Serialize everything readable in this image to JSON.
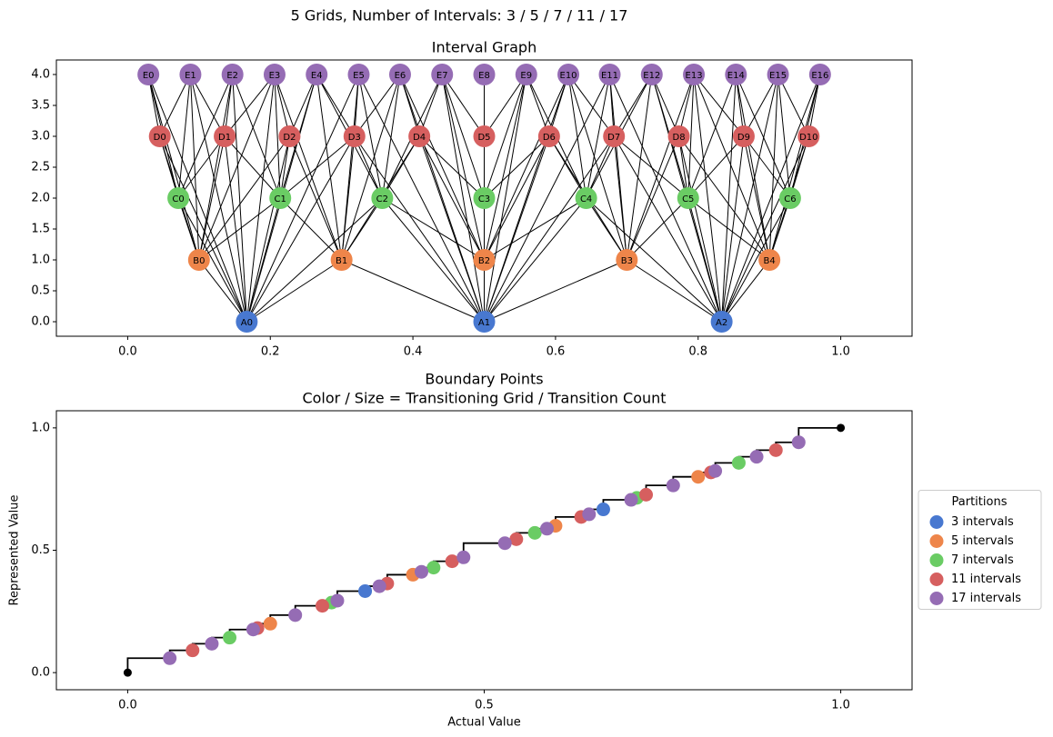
{
  "title": "5 Grids, Number of Intervals: 3 / 5 / 7 / 11 / 17",
  "chart_data": [
    {
      "type": "graph",
      "title": "Interval Graph",
      "xlim": [
        -0.1,
        1.1
      ],
      "ylim": [
        -0.235,
        4.235
      ],
      "xticks": [
        {
          "value": 0,
          "label": "0.0"
        },
        0.2,
        0.4,
        0.6,
        0.8,
        {
          "value": 1,
          "label": "1.0"
        }
      ],
      "yticks": [
        {
          "value": 0,
          "label": "0.0"
        },
        0.5,
        {
          "value": 1,
          "label": "1.0"
        },
        1.5,
        {
          "value": 2,
          "label": "2.0"
        },
        2.5,
        {
          "value": 3,
          "label": "3.0"
        },
        3.5,
        {
          "value": 4,
          "label": "4.0"
        }
      ],
      "series": [
        {
          "color": "#4878d0",
          "labels": [
            "A0",
            "A1",
            "A2"
          ],
          "x": [
            0.167,
            0.5,
            0.833
          ],
          "values": [
            0,
            0,
            0
          ]
        },
        {
          "color": "#ee854a",
          "labels": [
            "B0",
            "B1",
            "B2",
            "B3",
            "B4"
          ],
          "x": [
            0.1,
            0.3,
            0.5,
            0.7,
            0.9
          ],
          "values": [
            1,
            1,
            1,
            1,
            1
          ]
        },
        {
          "color": "#6acc64",
          "labels": [
            "C0",
            "C1",
            "C2",
            "C3",
            "C4",
            "C5",
            "C6"
          ],
          "x": [
            0.071,
            0.214,
            0.357,
            0.5,
            0.643,
            0.786,
            0.929
          ],
          "values": [
            2,
            2,
            2,
            2,
            2,
            2,
            2
          ]
        },
        {
          "color": "#d65f5f",
          "labels": [
            "D0",
            "D1",
            "D2",
            "D3",
            "D4",
            "D5",
            "D6",
            "D7",
            "D8",
            "D9",
            "D10"
          ],
          "x": [
            0.045,
            0.136,
            0.227,
            0.318,
            0.409,
            0.5,
            0.591,
            0.682,
            0.773,
            0.864,
            0.955
          ],
          "values": [
            3,
            3,
            3,
            3,
            3,
            3,
            3,
            3,
            3,
            3,
            3
          ]
        },
        {
          "color": "#956cb4",
          "labels": [
            "E0",
            "E1",
            "E2",
            "E3",
            "E4",
            "E5",
            "E6",
            "E7",
            "E8",
            "E9",
            "E10",
            "E11",
            "E12",
            "E13",
            "E14",
            "E15",
            "E16"
          ],
          "x": [
            0.029,
            0.088,
            0.147,
            0.206,
            0.265,
            0.324,
            0.382,
            0.441,
            0.5,
            0.559,
            0.618,
            0.676,
            0.735,
            0.794,
            0.853,
            0.912,
            0.971
          ],
          "values": [
            4,
            4,
            4,
            4,
            4,
            4,
            4,
            4,
            4,
            4,
            4,
            4,
            4,
            4,
            4,
            4,
            4
          ]
        }
      ]
    },
    {
      "type": "scatter",
      "title": [
        "Boundary Points",
        "Color / Size = Transitioning Grid / Transition Count"
      ],
      "x_label": "Actual Value",
      "y_label": "Represented Value",
      "xlim": [
        -0.1,
        1.1
      ],
      "ylim": [
        -0.07,
        1.07
      ],
      "xticks": [
        {
          "value": 0,
          "label": "0.0"
        },
        0.5,
        {
          "value": 1,
          "label": "1.0"
        }
      ],
      "yticks": [
        {
          "value": 0,
          "label": "0.0"
        },
        0.5,
        {
          "value": 1,
          "label": "1.0"
        }
      ],
      "legend_title": "Partitions",
      "legend_position": "right",
      "step": {
        "color": "#000000",
        "x": [
          0,
          0.059,
          0.091,
          0.118,
          0.143,
          0.176,
          0.182,
          0.2,
          0.235,
          0.273,
          0.286,
          0.294,
          0.333,
          0.353,
          0.364,
          0.4,
          0.412,
          0.429,
          0.455,
          0.471,
          0.529,
          0.545,
          0.571,
          0.588,
          0.6,
          0.636,
          0.647,
          0.667,
          0.706,
          0.714,
          0.727,
          0.765,
          0.8,
          0.818,
          0.824,
          0.857,
          0.882,
          0.909,
          0.941,
          1
        ],
        "values": [
          0,
          0.059,
          0.091,
          0.118,
          0.143,
          0.176,
          0.182,
          0.2,
          0.235,
          0.273,
          0.286,
          0.294,
          0.333,
          0.353,
          0.364,
          0.4,
          0.412,
          0.429,
          0.455,
          0.471,
          0.529,
          0.545,
          0.571,
          0.588,
          0.6,
          0.636,
          0.647,
          0.667,
          0.706,
          0.714,
          0.727,
          0.765,
          0.8,
          0.818,
          0.824,
          0.857,
          0.882,
          0.909,
          0.941,
          1
        ]
      },
      "series": [
        {
          "name": "3 intervals",
          "color": "#4878d0",
          "x": [
            0.333,
            0.667
          ],
          "values": [
            0.333,
            0.667
          ]
        },
        {
          "name": "5 intervals",
          "color": "#ee854a",
          "x": [
            0.2,
            0.4,
            0.6,
            0.8
          ],
          "values": [
            0.2,
            0.4,
            0.6,
            0.8
          ]
        },
        {
          "name": "7 intervals",
          "color": "#6acc64",
          "x": [
            0.143,
            0.286,
            0.429,
            0.571,
            0.714,
            0.857
          ],
          "values": [
            0.143,
            0.286,
            0.429,
            0.571,
            0.714,
            0.857
          ]
        },
        {
          "name": "11 intervals",
          "color": "#d65f5f",
          "x": [
            0.091,
            0.182,
            0.273,
            0.364,
            0.455,
            0.545,
            0.636,
            0.727,
            0.818,
            0.909
          ],
          "values": [
            0.091,
            0.182,
            0.273,
            0.364,
            0.455,
            0.545,
            0.636,
            0.727,
            0.818,
            0.909
          ]
        },
        {
          "name": "17 intervals",
          "color": "#956cb4",
          "x": [
            0.059,
            0.118,
            0.176,
            0.235,
            0.294,
            0.353,
            0.412,
            0.471,
            0.529,
            0.588,
            0.647,
            0.706,
            0.765,
            0.824,
            0.882,
            0.941
          ],
          "values": [
            0.059,
            0.118,
            0.176,
            0.235,
            0.294,
            0.353,
            0.412,
            0.471,
            0.529,
            0.588,
            0.647,
            0.706,
            0.765,
            0.824,
            0.882,
            0.941
          ]
        }
      ]
    }
  ]
}
